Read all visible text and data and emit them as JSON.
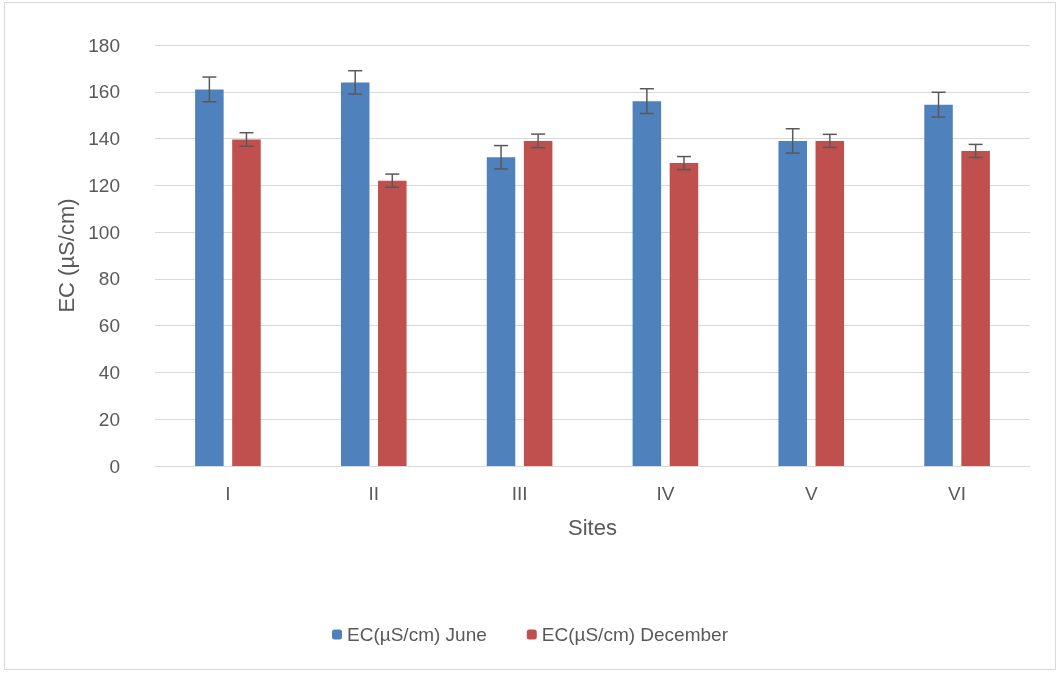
{
  "chart_data": {
    "type": "bar",
    "xlabel": "Sites",
    "ylabel": "EC (µS/cm)",
    "categories": [
      "I",
      "II",
      "III",
      "IV",
      "V",
      "VI"
    ],
    "series": [
      {
        "name": "EC(µS/cm) June",
        "color": "#4f81bd",
        "values": [
          161,
          164,
          132,
          156,
          139,
          154.5
        ],
        "errors": [
          5.3,
          5,
          5,
          5.3,
          5.2,
          5.3
        ]
      },
      {
        "name": "EC(µS/cm) December",
        "color": "#c0504d",
        "values": [
          139.6,
          122,
          139,
          129.5,
          139,
          134.7
        ],
        "errors": [
          2.9,
          2.8,
          2.9,
          2.8,
          2.8,
          2.8
        ]
      }
    ],
    "ylim": [
      0,
      180
    ],
    "yticks": [
      0,
      20,
      40,
      60,
      80,
      100,
      120,
      140,
      160,
      180
    ],
    "grid": "y",
    "legend": "bottom"
  }
}
